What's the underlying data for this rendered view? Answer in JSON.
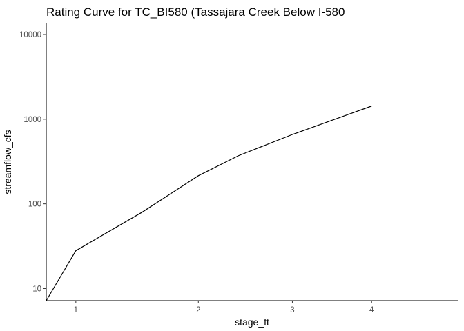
{
  "chart_data": {
    "type": "line",
    "title": "Rating Curve for TC_BI580 (Tassajara Creek Below I-580",
    "xlabel": "stage_ft",
    "ylabel": "streamflow_cfs",
    "x_scale": "sqrt",
    "y_scale": "log10",
    "xlim": [
      0.81,
      5.25
    ],
    "ylim": [
      7.2,
      13500
    ],
    "x_ticks": [
      1,
      2,
      3,
      4
    ],
    "x_tick_labels": [
      "1",
      "2",
      "3",
      "4"
    ],
    "y_ticks": [
      10,
      100,
      1000,
      10000
    ],
    "y_tick_labels": [
      "10",
      "100",
      "1000",
      "10000"
    ],
    "grid": false,
    "legend": "none",
    "series": [
      {
        "color": "#000000",
        "x": [
          0.81,
          1.0,
          1.5,
          2.0,
          2.4,
          3.0,
          4.0
        ],
        "y": [
          7.2,
          28,
          80,
          215,
          370,
          660,
          1430
        ]
      }
    ]
  }
}
